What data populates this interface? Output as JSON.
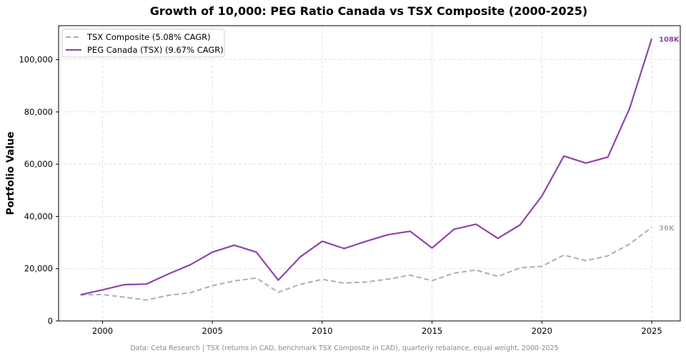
{
  "chart_data": {
    "type": "line",
    "title": "Growth of 10,000: PEG Ratio Canada vs TSX Composite (2000-2025)",
    "xlabel": "",
    "ylabel": "Portfolio Value",
    "xlim": [
      1998,
      2026.3
    ],
    "ylim": [
      0,
      113000
    ],
    "x_ticks": [
      2000,
      2005,
      2010,
      2015,
      2020,
      2025
    ],
    "y_ticks": [
      0,
      20000,
      40000,
      60000,
      80000,
      100000
    ],
    "y_tick_labels": [
      "0",
      "20,000",
      "40,000",
      "60,000",
      "80,000",
      "100,000"
    ],
    "grid": true,
    "legend_position": "upper-left",
    "x": [
      1999,
      2000,
      2001,
      2002,
      2003,
      2004,
      2005,
      2006,
      2007,
      2008,
      2009,
      2010,
      2011,
      2012,
      2013,
      2014,
      2015,
      2016,
      2017,
      2018,
      2019,
      2020,
      2021,
      2022,
      2023,
      2024,
      2025
    ],
    "series": [
      {
        "name": "TSX Composite (5.08% CAGR)",
        "color": "#a3b3b3",
        "style": "dashed",
        "end_label": "36K",
        "values": [
          10000,
          10100,
          9100,
          8000,
          9800,
          10800,
          13500,
          15300,
          16400,
          11000,
          14000,
          15900,
          14500,
          14900,
          16000,
          17500,
          15400,
          18300,
          19500,
          17000,
          20300,
          20900,
          25200,
          23100,
          24900,
          29500,
          35800
        ]
      },
      {
        "name": "PEG Canada (TSX) (9.67% CAGR)",
        "color": "#8e44ad",
        "style": "solid",
        "end_label": "108K",
        "values": [
          10000,
          11900,
          13900,
          14100,
          18000,
          21500,
          26300,
          29000,
          26300,
          15600,
          24500,
          30500,
          27700,
          30500,
          33000,
          34300,
          27900,
          35100,
          37000,
          31600,
          36700,
          47800,
          63100,
          60400,
          62700,
          81500,
          108000
        ]
      }
    ],
    "footnote": "Data: Ceta Research | TSX (returns in CAD, benchmark TSX Composite in CAD), quarterly rebalance, equal weight, 2000-2025"
  }
}
